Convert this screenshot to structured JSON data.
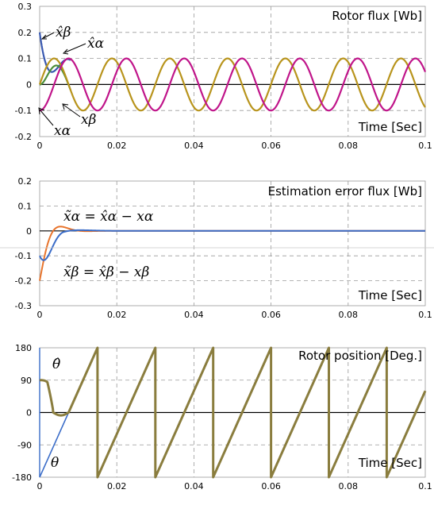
{
  "chart_data": [
    {
      "type": "line",
      "title": "Rotor flux [Wb]",
      "xlabel": "Time [Sec]",
      "ylabel": "",
      "xlim": [
        0,
        0.1
      ],
      "ylim": [
        -0.2,
        0.3
      ],
      "x_ticks": [
        "0",
        "0.02",
        "0.04",
        "0.06",
        "0.08",
        "0.1"
      ],
      "y_ticks": [
        "0.3",
        "0.2",
        "0.1",
        "0",
        "-0.1",
        "-0.2"
      ],
      "grid": true,
      "annotations": [
        "x̂β",
        "x̂α",
        "xα",
        "xβ"
      ],
      "series": [
        {
          "color": "#b8941c",
          "amplitude": 0.1,
          "frequency_hz": 66.7,
          "phase": "sin",
          "t_start": 0
        },
        {
          "color": "#c0158a",
          "amplitude": 0.1,
          "frequency_hz": 66.7,
          "phase": "-cos",
          "t_start": 0
        },
        {
          "color": "#3858b0",
          "start_value": 0.2,
          "converges_to": "x̂β",
          "settle_time": 0.008
        },
        {
          "color": "#4b8f3a",
          "start_value": 0,
          "min_value": -0.06,
          "converges_to": "x̂α",
          "settle_time": 0.008
        }
      ]
    },
    {
      "type": "line",
      "title": "Estimation error flux [Wb]",
      "xlabel": "Time [Sec]",
      "ylabel": "",
      "xlim": [
        0,
        0.1
      ],
      "ylim": [
        -0.3,
        0.2
      ],
      "x_ticks": [
        "0",
        "0.02",
        "0.04",
        "0.06",
        "0.08",
        "0.1"
      ],
      "y_ticks": [
        "0.2",
        "0.1",
        "0",
        "-0.1",
        "-0.2",
        "-0.3"
      ],
      "grid": true,
      "annotations": [
        "x̃α = x̂α − xα",
        "x̃β = x̂β − xβ"
      ],
      "series": [
        {
          "color": "#e8742c",
          "start_value": -0.2,
          "settle_time": 0.012,
          "end_value": 0
        },
        {
          "color": "#3a6cc8",
          "start_value": -0.1,
          "min_value": -0.13,
          "settle_time": 0.012,
          "end_value": 0
        }
      ]
    },
    {
      "type": "line",
      "title": "Rotor position [Deg.]",
      "xlabel": "Time [Sec]",
      "ylabel": "",
      "xlim": [
        0,
        0.1
      ],
      "ylim": [
        -180,
        180
      ],
      "x_ticks": [
        "0",
        "0.02",
        "0.04",
        "0.06",
        "0.08",
        "0.1"
      ],
      "y_ticks": [
        "180",
        "90",
        "0",
        "-90",
        "-180"
      ],
      "grid": true,
      "annotations": [
        "θ̂",
        "θ"
      ],
      "series": [
        {
          "color": "#8a7d3e",
          "start_value": 90,
          "settle_time": 0.008,
          "wrap_period": 0.015
        },
        {
          "color": "#3a6cc8",
          "start_value": -180,
          "slope_deg_per_s": 24000
        }
      ]
    }
  ]
}
